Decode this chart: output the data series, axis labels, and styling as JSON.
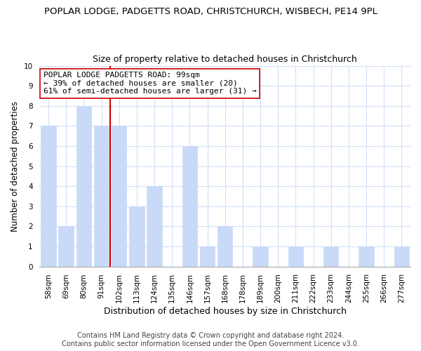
{
  "title": "POPLAR LODGE, PADGETTS ROAD, CHRISTCHURCH, WISBECH, PE14 9PL",
  "subtitle": "Size of property relative to detached houses in Christchurch",
  "xlabel": "Distribution of detached houses by size in Christchurch",
  "ylabel": "Number of detached properties",
  "bar_labels": [
    "58sqm",
    "69sqm",
    "80sqm",
    "91sqm",
    "102sqm",
    "113sqm",
    "124sqm",
    "135sqm",
    "146sqm",
    "157sqm",
    "168sqm",
    "178sqm",
    "189sqm",
    "200sqm",
    "211sqm",
    "222sqm",
    "233sqm",
    "244sqm",
    "255sqm",
    "266sqm",
    "277sqm"
  ],
  "bar_values": [
    7,
    2,
    8,
    7,
    7,
    3,
    4,
    0,
    6,
    1,
    2,
    0,
    1,
    0,
    1,
    0,
    1,
    0,
    1,
    0,
    1
  ],
  "bar_color": "#c9daf8",
  "bar_edge_color": "#c9daf8",
  "highlight_index": 4,
  "highlight_line_color": "#cc0000",
  "ylim": [
    0,
    10
  ],
  "yticks": [
    0,
    1,
    2,
    3,
    4,
    5,
    6,
    7,
    8,
    9,
    10
  ],
  "annotation_line1": "POPLAR LODGE PADGETTS ROAD: 99sqm",
  "annotation_line2": "← 39% of detached houses are smaller (20)",
  "annotation_line3": "61% of semi-detached houses are larger (31) →",
  "annotation_box_color": "#ffffff",
  "annotation_box_edge": "#cc0000",
  "footer1": "Contains HM Land Registry data © Crown copyright and database right 2024.",
  "footer2": "Contains public sector information licensed under the Open Government Licence v3.0.",
  "grid_color": "#d0dff8",
  "title_fontsize": 9.5,
  "subtitle_fontsize": 9,
  "xlabel_fontsize": 9,
  "ylabel_fontsize": 8.5,
  "tick_fontsize": 7.5,
  "annotation_fontsize": 8,
  "footer_fontsize": 7
}
